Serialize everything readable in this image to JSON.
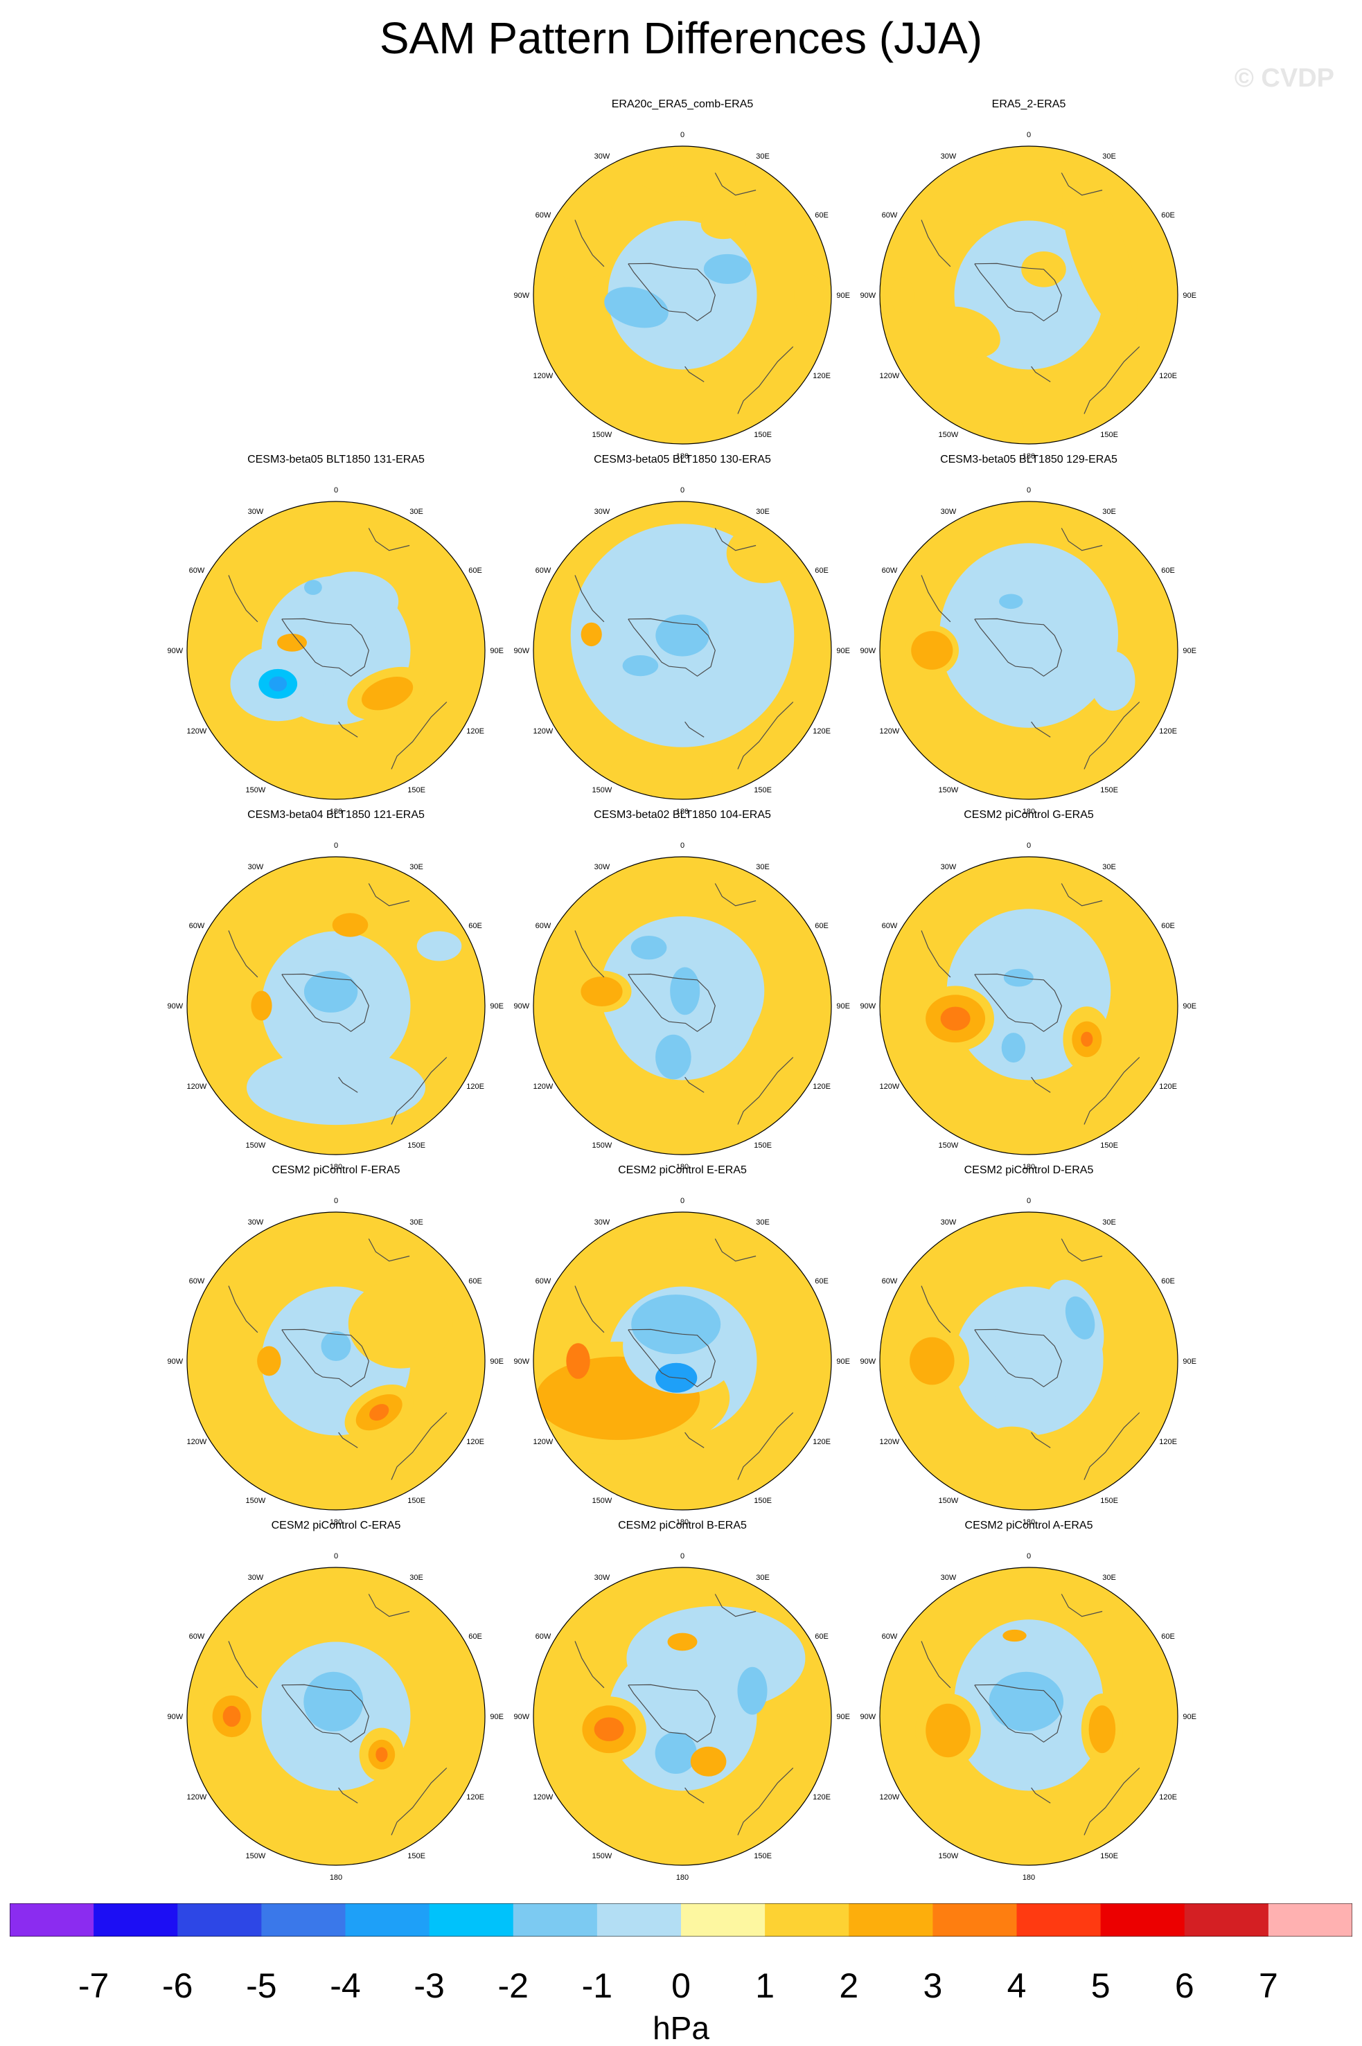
{
  "title": "SAM Pattern Differences (JJA)",
  "watermark": "© CVDP",
  "colors": {
    "levels": [
      "#8b2cf0",
      "#1c0ef4",
      "#2d47e6",
      "#3a78ea",
      "#1ea0f8",
      "#00c2fb",
      "#7ccaf2",
      "#b3def4",
      "#fdf7a0",
      "#fdd233",
      "#fdae0c",
      "#fe7e10",
      "#ff3a11",
      "#ec0000",
      "#d41f23",
      "#ffb1b1"
    ],
    "land_outline": "#4a4a4a"
  },
  "longitude_labels": [
    "0",
    "30E",
    "60E",
    "90E",
    "120E",
    "150E",
    "180",
    "150W",
    "120W",
    "90W",
    "60W",
    "30W"
  ],
  "panels": [
    {
      "title": "ERA20c_ERA5_comb-ERA5",
      "blobs": [
        {
          "lon": -105,
          "r": 0.32,
          "rx": 0.22,
          "ry": 0.13,
          "rot": 15,
          "level": -2
        },
        {
          "lon": 60,
          "r": 0.35,
          "rx": 0.16,
          "ry": 0.1,
          "rot": 0,
          "level": -2
        },
        {
          "lon": -10,
          "r": 0.8,
          "rx": 0.25,
          "ry": 0.1,
          "rot": 20,
          "level": 1
        },
        {
          "lon": -60,
          "r": 0.8,
          "rx": 0.28,
          "ry": 0.3,
          "rot": 0,
          "level": 1
        },
        {
          "lon": 30,
          "r": 0.55,
          "rx": 0.15,
          "ry": 0.1,
          "rot": 0,
          "level": 1
        },
        {
          "lon": 90,
          "r": 0.85,
          "rx": 0.1,
          "ry": 0.14,
          "rot": 0,
          "level": 1
        }
      ]
    },
    {
      "title": "ERA5_2-ERA5",
      "blobs": [
        {
          "lon": -10,
          "r": 0.7,
          "rx": 0.55,
          "ry": 0.2,
          "rot": -10,
          "level": 1
        },
        {
          "lon": 60,
          "r": 0.55,
          "rx": 0.18,
          "ry": 0.55,
          "rot": -20,
          "level": 1
        },
        {
          "lon": -120,
          "r": 0.5,
          "rx": 0.25,
          "ry": 0.16,
          "rot": 20,
          "level": 1
        },
        {
          "lon": -90,
          "r": 0.85,
          "rx": 0.08,
          "ry": 0.12,
          "rot": 0,
          "level": 1
        },
        {
          "lon": 30,
          "r": 0.2,
          "rx": 0.15,
          "ry": 0.12,
          "rot": 0,
          "level": 1
        },
        {
          "lon": -170,
          "r": 0.9,
          "rx": 0.12,
          "ry": 0.06,
          "rot": 0,
          "level": 1
        }
      ]
    },
    {
      "title": "CESM3-beta05 BLT1850 131-ERA5",
      "blobs": [
        {
          "lon": -120,
          "r": 0.45,
          "rx": 0.32,
          "ry": 0.25,
          "rot": 0,
          "level": -1
        },
        {
          "lon": -120,
          "r": 0.45,
          "rx": 0.13,
          "ry": 0.1,
          "rot": 0,
          "level": -3
        },
        {
          "lon": -120,
          "r": 0.45,
          "rx": 0.06,
          "ry": 0.05,
          "rot": 0,
          "level": -4
        },
        {
          "lon": 130,
          "r": 0.45,
          "rx": 0.28,
          "ry": 0.16,
          "rot": -20,
          "level": 1
        },
        {
          "lon": 130,
          "r": 0.45,
          "rx": 0.18,
          "ry": 0.1,
          "rot": -20,
          "level": 2
        },
        {
          "lon": -80,
          "r": 0.3,
          "rx": 0.1,
          "ry": 0.06,
          "rot": 0,
          "level": 2
        },
        {
          "lon": 20,
          "r": 0.35,
          "rx": 0.3,
          "ry": 0.2,
          "rot": 0,
          "level": -1
        },
        {
          "lon": -20,
          "r": 0.45,
          "rx": 0.06,
          "ry": 0.05,
          "rot": 0,
          "level": -2
        }
      ]
    },
    {
      "title": "CESM3-beta05 BLT1850 130-ERA5",
      "blobs": [
        {
          "lon": 0,
          "r": 0.1,
          "rx": 0.75,
          "ry": 0.75,
          "rot": 0,
          "level": -1
        },
        {
          "lon": -110,
          "r": 0.3,
          "rx": 0.12,
          "ry": 0.07,
          "rot": 0,
          "level": -2
        },
        {
          "lon": 0,
          "r": 0.1,
          "rx": 0.18,
          "ry": 0.14,
          "rot": 0,
          "level": -2
        },
        {
          "lon": -80,
          "r": 0.62,
          "rx": 0.07,
          "ry": 0.08,
          "rot": 0,
          "level": 2
        },
        {
          "lon": 40,
          "r": 0.85,
          "rx": 0.25,
          "ry": 0.2,
          "rot": 0,
          "level": 1
        },
        {
          "lon": -170,
          "r": 0.85,
          "rx": 0.35,
          "ry": 0.18,
          "rot": 0,
          "level": 1
        }
      ]
    },
    {
      "title": "CESM3-beta05 BLT1850 129-ERA5",
      "blobs": [
        {
          "lon": 0,
          "r": 0.1,
          "rx": 0.6,
          "ry": 0.62,
          "rot": 0,
          "level": -1
        },
        {
          "lon": -90,
          "r": 0.65,
          "rx": 0.18,
          "ry": 0.17,
          "rot": 0,
          "level": 1
        },
        {
          "lon": -90,
          "r": 0.65,
          "rx": 0.14,
          "ry": 0.13,
          "rot": 0,
          "level": 2
        },
        {
          "lon": -20,
          "r": 0.35,
          "rx": 0.08,
          "ry": 0.05,
          "rot": 0,
          "level": -2
        },
        {
          "lon": 110,
          "r": 0.6,
          "rx": 0.15,
          "ry": 0.2,
          "rot": 0,
          "level": -1
        }
      ]
    },
    {
      "title": "CESM3-beta04 BLT1850 121-ERA5",
      "blobs": [
        {
          "lon": 0,
          "r": 0.1,
          "rx": 0.3,
          "ry": 0.28,
          "rot": 0,
          "level": -1
        },
        {
          "lon": -20,
          "r": 0.1,
          "rx": 0.18,
          "ry": 0.14,
          "rot": 0,
          "level": -2
        },
        {
          "lon": 180,
          "r": 0.55,
          "rx": 0.6,
          "ry": 0.25,
          "rot": 0,
          "level": -1
        },
        {
          "lon": -90,
          "r": 0.5,
          "rx": 0.07,
          "ry": 0.1,
          "rot": 0,
          "level": 2
        },
        {
          "lon": 10,
          "r": 0.55,
          "rx": 0.12,
          "ry": 0.08,
          "rot": 0,
          "level": 2
        },
        {
          "lon": 60,
          "r": 0.8,
          "rx": 0.15,
          "ry": 0.1,
          "rot": 0,
          "level": -1
        }
      ]
    },
    {
      "title": "CESM3-beta02 BLT1850 104-ERA5",
      "blobs": [
        {
          "lon": 0,
          "r": 0.1,
          "rx": 0.55,
          "ry": 0.5,
          "rot": 0,
          "level": -1
        },
        {
          "lon": -80,
          "r": 0.55,
          "rx": 0.2,
          "ry": 0.14,
          "rot": 0,
          "level": 1
        },
        {
          "lon": -80,
          "r": 0.55,
          "rx": 0.14,
          "ry": 0.1,
          "rot": 0,
          "level": 2
        },
        {
          "lon": 10,
          "r": 0.1,
          "rx": 0.1,
          "ry": 0.16,
          "rot": 0,
          "level": -2
        },
        {
          "lon": -170,
          "r": 0.35,
          "rx": 0.12,
          "ry": 0.15,
          "rot": 0,
          "level": -2
        },
        {
          "lon": -30,
          "r": 0.45,
          "rx": 0.12,
          "ry": 0.08,
          "rot": 0,
          "level": -2
        }
      ]
    },
    {
      "title": "CESM2 piControl G-ERA5",
      "blobs": [
        {
          "lon": 0,
          "r": 0.1,
          "rx": 0.55,
          "ry": 0.55,
          "rot": 0,
          "level": -1
        },
        {
          "lon": -100,
          "r": 0.5,
          "rx": 0.26,
          "ry": 0.22,
          "rot": 0,
          "level": 1
        },
        {
          "lon": -100,
          "r": 0.5,
          "rx": 0.2,
          "ry": 0.16,
          "rot": 0,
          "level": 2
        },
        {
          "lon": -100,
          "r": 0.5,
          "rx": 0.1,
          "ry": 0.08,
          "rot": 0,
          "level": 3
        },
        {
          "lon": 120,
          "r": 0.45,
          "rx": 0.16,
          "ry": 0.22,
          "rot": 0,
          "level": 1
        },
        {
          "lon": 120,
          "r": 0.45,
          "rx": 0.1,
          "ry": 0.12,
          "rot": 0,
          "level": 2
        },
        {
          "lon": 120,
          "r": 0.45,
          "rx": 0.04,
          "ry": 0.05,
          "rot": 0,
          "level": 3
        },
        {
          "lon": -160,
          "r": 0.3,
          "rx": 0.08,
          "ry": 0.1,
          "rot": 0,
          "level": -2
        },
        {
          "lon": -20,
          "r": 0.2,
          "rx": 0.1,
          "ry": 0.06,
          "rot": 0,
          "level": -2
        }
      ]
    },
    {
      "title": "CESM2 piControl F-ERA5",
      "blobs": [
        {
          "lon": 0,
          "r": 0.1,
          "rx": 0.2,
          "ry": 0.2,
          "rot": 0,
          "level": -1
        },
        {
          "lon": 0,
          "r": 0.1,
          "rx": 0.1,
          "ry": 0.1,
          "rot": 0,
          "level": -2
        },
        {
          "lon": 140,
          "r": 0.45,
          "rx": 0.25,
          "ry": 0.16,
          "rot": -30,
          "level": 1
        },
        {
          "lon": 140,
          "r": 0.45,
          "rx": 0.17,
          "ry": 0.1,
          "rot": -30,
          "level": 2
        },
        {
          "lon": 140,
          "r": 0.45,
          "rx": 0.07,
          "ry": 0.05,
          "rot": -30,
          "level": 3
        },
        {
          "lon": -90,
          "r": 0.45,
          "rx": 0.08,
          "ry": 0.1,
          "rot": 0,
          "level": 2
        },
        {
          "lon": 60,
          "r": 0.5,
          "rx": 0.35,
          "ry": 0.3,
          "rot": 0,
          "level": 1
        }
      ]
    },
    {
      "title": "CESM2 piControl E-ERA5",
      "blobs": [
        {
          "lon": -120,
          "r": 0.5,
          "rx": 0.75,
          "ry": 0.38,
          "rot": 0,
          "level": 1
        },
        {
          "lon": -120,
          "r": 0.5,
          "rx": 0.55,
          "ry": 0.28,
          "rot": 0,
          "level": 2
        },
        {
          "lon": -90,
          "r": 0.7,
          "rx": 0.08,
          "ry": 0.12,
          "rot": 0,
          "level": 3
        },
        {
          "lon": 0,
          "r": 0.1,
          "rx": 0.4,
          "ry": 0.32,
          "rot": 0,
          "level": -1
        },
        {
          "lon": -10,
          "r": 0.25,
          "rx": 0.3,
          "ry": 0.2,
          "rot": 0,
          "level": -2
        },
        {
          "lon": -160,
          "r": 0.12,
          "rx": 0.14,
          "ry": 0.1,
          "rot": 0,
          "level": -4
        },
        {
          "lon": 0,
          "r": 0.85,
          "rx": 0.35,
          "ry": 0.1,
          "rot": 0,
          "level": 1
        }
      ]
    },
    {
      "title": "CESM2 piControl D-ERA5",
      "blobs": [
        {
          "lon": -90,
          "r": 0.65,
          "rx": 0.25,
          "ry": 0.25,
          "rot": 0,
          "level": 1
        },
        {
          "lon": -90,
          "r": 0.65,
          "rx": 0.15,
          "ry": 0.16,
          "rot": 0,
          "level": 2
        },
        {
          "lon": 50,
          "r": 0.4,
          "rx": 0.18,
          "ry": 0.3,
          "rot": -20,
          "level": -1
        },
        {
          "lon": 50,
          "r": 0.45,
          "rx": 0.09,
          "ry": 0.15,
          "rot": -20,
          "level": -2
        },
        {
          "lon": 160,
          "r": 0.2,
          "rx": 0.3,
          "ry": 0.25,
          "rot": 0,
          "level": -1
        },
        {
          "lon": -170,
          "r": 0.65,
          "rx": 0.25,
          "ry": 0.2,
          "rot": 0,
          "level": 1
        }
      ]
    },
    {
      "title": "CESM2 piControl C-ERA5",
      "blobs": [
        {
          "lon": 0,
          "r": 0.1,
          "rx": 0.42,
          "ry": 0.4,
          "rot": 0,
          "level": -1
        },
        {
          "lon": -10,
          "r": 0.1,
          "rx": 0.2,
          "ry": 0.2,
          "rot": 0,
          "level": -2
        },
        {
          "lon": -90,
          "r": 0.7,
          "rx": 0.2,
          "ry": 0.2,
          "rot": 0,
          "level": 1
        },
        {
          "lon": -90,
          "r": 0.7,
          "rx": 0.13,
          "ry": 0.14,
          "rot": 0,
          "level": 2
        },
        {
          "lon": -90,
          "r": 0.7,
          "rx": 0.06,
          "ry": 0.07,
          "rot": 0,
          "level": 3
        },
        {
          "lon": 130,
          "r": 0.4,
          "rx": 0.15,
          "ry": 0.18,
          "rot": 0,
          "level": 1
        },
        {
          "lon": 130,
          "r": 0.4,
          "rx": 0.09,
          "ry": 0.1,
          "rot": 0,
          "level": 2
        },
        {
          "lon": 130,
          "r": 0.4,
          "rx": 0.04,
          "ry": 0.05,
          "rot": 0,
          "level": 3
        }
      ]
    },
    {
      "title": "CESM2 piControl B-ERA5",
      "blobs": [
        {
          "lon": 30,
          "r": 0.45,
          "rx": 0.6,
          "ry": 0.35,
          "rot": 0,
          "level": -1
        },
        {
          "lon": 70,
          "r": 0.5,
          "rx": 0.1,
          "ry": 0.16,
          "rot": 0,
          "level": -2
        },
        {
          "lon": -170,
          "r": 0.25,
          "rx": 0.14,
          "ry": 0.14,
          "rot": 0,
          "level": -2
        },
        {
          "lon": -100,
          "r": 0.5,
          "rx": 0.25,
          "ry": 0.22,
          "rot": 0,
          "level": 1
        },
        {
          "lon": -100,
          "r": 0.5,
          "rx": 0.18,
          "ry": 0.16,
          "rot": 0,
          "level": 2
        },
        {
          "lon": -100,
          "r": 0.5,
          "rx": 0.1,
          "ry": 0.08,
          "rot": 0,
          "level": 3
        },
        {
          "lon": 150,
          "r": 0.35,
          "rx": 0.12,
          "ry": 0.1,
          "rot": 0,
          "level": 2
        },
        {
          "lon": 0,
          "r": 0.5,
          "rx": 0.1,
          "ry": 0.06,
          "rot": 0,
          "level": 2
        }
      ]
    },
    {
      "title": "CESM2 piControl A-ERA5",
      "blobs": [
        {
          "lon": 0,
          "r": 0.1,
          "rx": 0.5,
          "ry": 0.55,
          "rot": 0,
          "level": -1
        },
        {
          "lon": -10,
          "r": 0.1,
          "rx": 0.25,
          "ry": 0.2,
          "rot": 0,
          "level": -2
        },
        {
          "lon": -100,
          "r": 0.55,
          "rx": 0.22,
          "ry": 0.25,
          "rot": 0,
          "level": 1
        },
        {
          "lon": -100,
          "r": 0.55,
          "rx": 0.15,
          "ry": 0.18,
          "rot": 0,
          "level": 2
        },
        {
          "lon": 100,
          "r": 0.5,
          "rx": 0.14,
          "ry": 0.24,
          "rot": 0,
          "level": 1
        },
        {
          "lon": 100,
          "r": 0.5,
          "rx": 0.09,
          "ry": 0.16,
          "rot": 0,
          "level": 2
        },
        {
          "lon": -10,
          "r": 0.55,
          "rx": 0.08,
          "ry": 0.04,
          "rot": 0,
          "level": 2
        }
      ]
    }
  ],
  "chart_data": {
    "type": "heatmap",
    "title": "SAM Pattern Differences (JJA)",
    "projection": "south polar stereographic",
    "panels": [
      "ERA20c_ERA5_comb-ERA5",
      "ERA5_2-ERA5",
      "CESM3-beta05 BLT1850 131-ERA5",
      "CESM3-beta05 BLT1850 130-ERA5",
      "CESM3-beta05 BLT1850 129-ERA5",
      "CESM3-beta04 BLT1850 121-ERA5",
      "CESM3-beta02 BLT1850 104-ERA5",
      "CESM2 piControl G-ERA5",
      "CESM2 piControl F-ERA5",
      "CESM2 piControl E-ERA5",
      "CESM2 piControl D-ERA5",
      "CESM2 piControl C-ERA5",
      "CESM2 piControl B-ERA5",
      "CESM2 piControl A-ERA5"
    ],
    "colorbar": {
      "labels": [
        "-7",
        "-6",
        "-5",
        "-4",
        "-3",
        "-2",
        "-1",
        "0",
        "1",
        "2",
        "3",
        "4",
        "5",
        "6",
        "7"
      ],
      "units": "hPa",
      "range": [
        -8,
        8
      ]
    }
  }
}
